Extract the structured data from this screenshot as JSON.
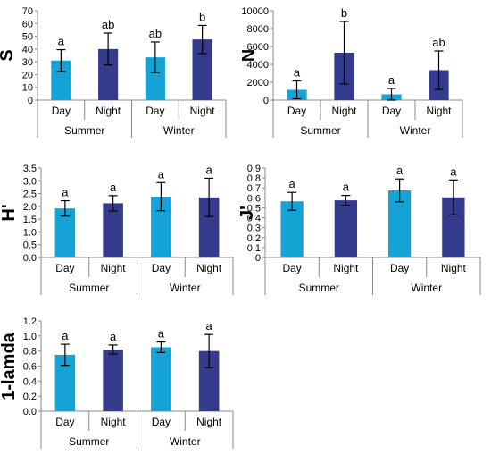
{
  "colors": {
    "day": "#15a3d6",
    "night": "#353b8c"
  },
  "chart_data": [
    {
      "type": "bar",
      "ylabel": "S",
      "ylim": [
        0,
        70
      ],
      "yticks": [
        "0",
        "10",
        "20",
        "30",
        "40",
        "50",
        "60",
        "70"
      ],
      "groups": [
        "Summer",
        "Winter"
      ],
      "categories": [
        "Day",
        "Night",
        "Day",
        "Night"
      ],
      "values": [
        31,
        40,
        33.5,
        47.5
      ],
      "errors": [
        8.5,
        12.5,
        12,
        11
      ],
      "significance": [
        "a",
        "ab",
        "ab",
        "b"
      ]
    },
    {
      "type": "bar",
      "ylabel": "N",
      "ylim": [
        0,
        10000
      ],
      "yticks": [
        "0",
        "2000",
        "4000",
        "6000",
        "8000",
        "10000"
      ],
      "groups": [
        "Summer",
        "Winter"
      ],
      "categories": [
        "Day",
        "Night",
        "Day",
        "Night"
      ],
      "values": [
        1150,
        5300,
        650,
        3350
      ],
      "errors": [
        1000,
        3500,
        650,
        2150
      ],
      "significance": [
        "a",
        "b",
        "a",
        "ab"
      ]
    },
    {
      "type": "bar",
      "ylabel": "H'",
      "ylim": [
        0,
        3.5
      ],
      "yticks": [
        "0.0",
        "0.5",
        "1.0",
        "1.5",
        "2.0",
        "2.5",
        "3.0",
        "3.5"
      ],
      "groups": [
        "Summer",
        "Winter"
      ],
      "categories": [
        "Day",
        "Night",
        "Day",
        "Night"
      ],
      "values": [
        1.92,
        2.12,
        2.38,
        2.35
      ],
      "errors": [
        0.3,
        0.3,
        0.55,
        0.75
      ],
      "significance": [
        "a",
        "a",
        "a",
        "a"
      ]
    },
    {
      "type": "bar",
      "ylabel": "J'",
      "ylim": [
        0,
        0.9
      ],
      "yticks": [
        "0",
        "0.1",
        "0.2",
        "0.3",
        "0.4",
        "0.5",
        "0.6",
        "0.7",
        "0.8",
        "0.9"
      ],
      "groups": [
        "Summer",
        "Winter"
      ],
      "categories": [
        "Day",
        "Night",
        "Day",
        "Night"
      ],
      "values": [
        0.565,
        0.575,
        0.675,
        0.605
      ],
      "errors": [
        0.09,
        0.05,
        0.115,
        0.175
      ],
      "significance": [
        "a",
        "a",
        "a",
        "a"
      ]
    },
    {
      "type": "bar",
      "ylabel": "1-lamda",
      "ylim": [
        0,
        1.2
      ],
      "yticks": [
        "0.0",
        "0.2",
        "0.4",
        "0.6",
        "0.8",
        "1.0",
        "1.2"
      ],
      "groups": [
        "Summer",
        "Winter"
      ],
      "categories": [
        "Day",
        "Night",
        "Day",
        "Night"
      ],
      "values": [
        0.75,
        0.82,
        0.85,
        0.8
      ],
      "errors": [
        0.14,
        0.06,
        0.07,
        0.22
      ],
      "significance": [
        "a",
        "a",
        "a",
        "a"
      ]
    }
  ]
}
